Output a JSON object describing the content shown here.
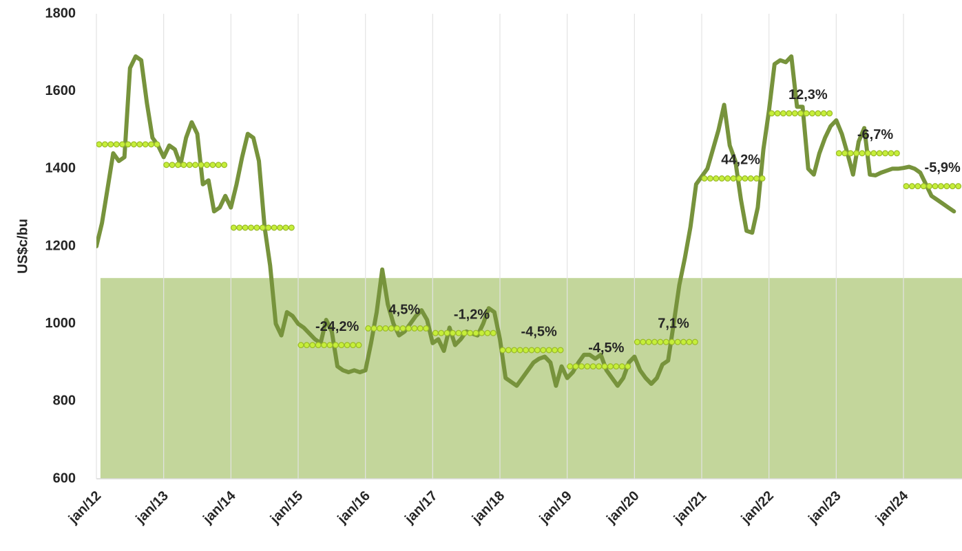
{
  "chart_data": {
    "type": "line",
    "y_label": "US$c/bu",
    "xlim": [
      2012,
      2024.87
    ],
    "ylim": [
      600,
      1800
    ],
    "yticks": [
      600,
      800,
      1000,
      1200,
      1400,
      1600,
      1800
    ],
    "xticks": [
      {
        "value": 2012,
        "label": "jan/12"
      },
      {
        "value": 2013,
        "label": "jan/13"
      },
      {
        "value": 2014,
        "label": "jan/14"
      },
      {
        "value": 2015,
        "label": "jan/15"
      },
      {
        "value": 2016,
        "label": "jan/16"
      },
      {
        "value": 2017,
        "label": "jan/17"
      },
      {
        "value": 2018,
        "label": "jan/18"
      },
      {
        "value": 2019,
        "label": "jan/19"
      },
      {
        "value": 2020,
        "label": "jan/20"
      },
      {
        "value": 2021,
        "label": "jan/21"
      },
      {
        "value": 2022,
        "label": "jan/22"
      },
      {
        "value": 2023,
        "label": "jan/23"
      },
      {
        "value": 2024,
        "label": "jan/24"
      }
    ],
    "grid": true,
    "shaded_band": {
      "from": 600,
      "to": 1118,
      "start": 2012.06,
      "color": "#c3d69b"
    },
    "series": [
      {
        "color": "#77933c",
        "start_year": 2012,
        "values": [
          1200,
          1260,
          1350,
          1440,
          1420,
          1430,
          1660,
          1690,
          1680,
          1570,
          1480,
          1460,
          1430,
          1460,
          1450,
          1410,
          1480,
          1520,
          1490,
          1360,
          1370,
          1290,
          1300,
          1330,
          1300,
          1360,
          1430,
          1490,
          1480,
          1420,
          1250,
          1150,
          1000,
          970,
          1030,
          1020,
          1000,
          990,
          975,
          960,
          950,
          1010,
          980,
          890,
          880,
          875,
          880,
          875,
          880,
          950,
          1030,
          1140,
          1050,
          1000,
          970,
          980,
          1000,
          1020,
          1035,
          1010,
          950,
          960,
          930,
          990,
          945,
          960,
          980,
          975,
          970,
          1000,
          1040,
          1030,
          960,
          860,
          850,
          840,
          860,
          880,
          900,
          910,
          915,
          900,
          840,
          890,
          860,
          875,
          900,
          920,
          920,
          910,
          920,
          880,
          860,
          840,
          860,
          900,
          915,
          880,
          860,
          845,
          860,
          895,
          905,
          1000,
          1100,
          1170,
          1250,
          1360,
          1380,
          1400,
          1450,
          1500,
          1565,
          1460,
          1420,
          1320,
          1240,
          1235,
          1300,
          1450,
          1550,
          1670,
          1680,
          1675,
          1690,
          1560,
          1560,
          1400,
          1385,
          1440,
          1480,
          1510,
          1525,
          1490,
          1440,
          1385,
          1470,
          1505,
          1385,
          1383,
          1390,
          1395,
          1400,
          1400,
          1402,
          1405,
          1400,
          1390,
          1360,
          1330,
          1320,
          1310,
          1300,
          1290
        ]
      }
    ],
    "annual": {
      "color": "#c6ef3a",
      "years": [
        2012,
        2013,
        2014,
        2015,
        2016,
        2017,
        2018,
        2019,
        2020,
        2021,
        2022,
        2023,
        2024
      ],
      "averages": [
        1463,
        1410,
        1248,
        945,
        988,
        976,
        932,
        890,
        953,
        1375,
        1543,
        1440,
        1355
      ],
      "changes": [
        null,
        null,
        null,
        -24.2,
        4.5,
        -1.2,
        -4.5,
        -4.5,
        7.1,
        44.2,
        12.3,
        -6.7,
        -5.9
      ],
      "change_labels": [
        null,
        null,
        null,
        "-24,2%",
        "4,5%",
        "-1,2%",
        "-4,5%",
        "-4,5%",
        "7,1%",
        "44,2%",
        "12,3%",
        "-6,7%",
        "-5,9%"
      ]
    }
  }
}
